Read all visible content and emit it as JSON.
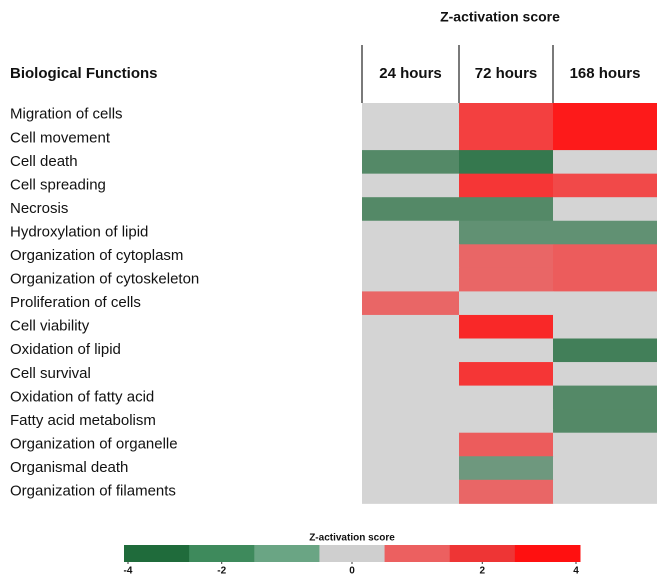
{
  "chart_data": {
    "type": "heatmap",
    "title": "Z-activation score",
    "row_header": "Biological Functions",
    "columns": [
      "24 hours",
      "72 hours",
      "168 hours"
    ],
    "rows": [
      "Migration of cells",
      "Cell movement",
      "Cell death",
      "Cell spreading",
      "Necrosis",
      "Hydroxylation of lipid",
      "Organization of cytoplasm",
      "Organization of cytoskeleton",
      "Proliferation of cells",
      "Cell viability",
      "Oxidation of lipid",
      "Cell survival",
      "Oxidation of fatty acid",
      "Fatty acid metabolism",
      "Organization of organelle",
      "Organismal death",
      "Organization of filaments"
    ],
    "values": [
      [
        null,
        3.0,
        3.8
      ],
      [
        null,
        3.0,
        3.8
      ],
      [
        -2.8,
        -3.5,
        null
      ],
      [
        null,
        3.2,
        2.8
      ],
      [
        -2.8,
        -2.8,
        null
      ],
      [
        null,
        -2.5,
        -2.5
      ],
      [
        null,
        2.2,
        2.4
      ],
      [
        null,
        2.2,
        2.4
      ],
      [
        2.2,
        null,
        null
      ],
      [
        null,
        3.5,
        null
      ],
      [
        null,
        null,
        -3.2
      ],
      [
        null,
        3.2,
        null
      ],
      [
        null,
        null,
        -2.8
      ],
      [
        null,
        null,
        -2.8
      ],
      [
        null,
        2.4,
        null
      ],
      [
        null,
        -2.2,
        null
      ],
      [
        null,
        2.2,
        null
      ]
    ],
    "missing_color": "#d4d4d4",
    "legend": {
      "title": "Z-activation score",
      "colors": [
        "#1f6b3b",
        "#3e8a5c",
        "#6aa584",
        "#cfcfcf",
        "#ec6060",
        "#ee3535",
        "#ff1010"
      ],
      "ticks": [
        -4,
        -2,
        0,
        2,
        4
      ]
    }
  }
}
